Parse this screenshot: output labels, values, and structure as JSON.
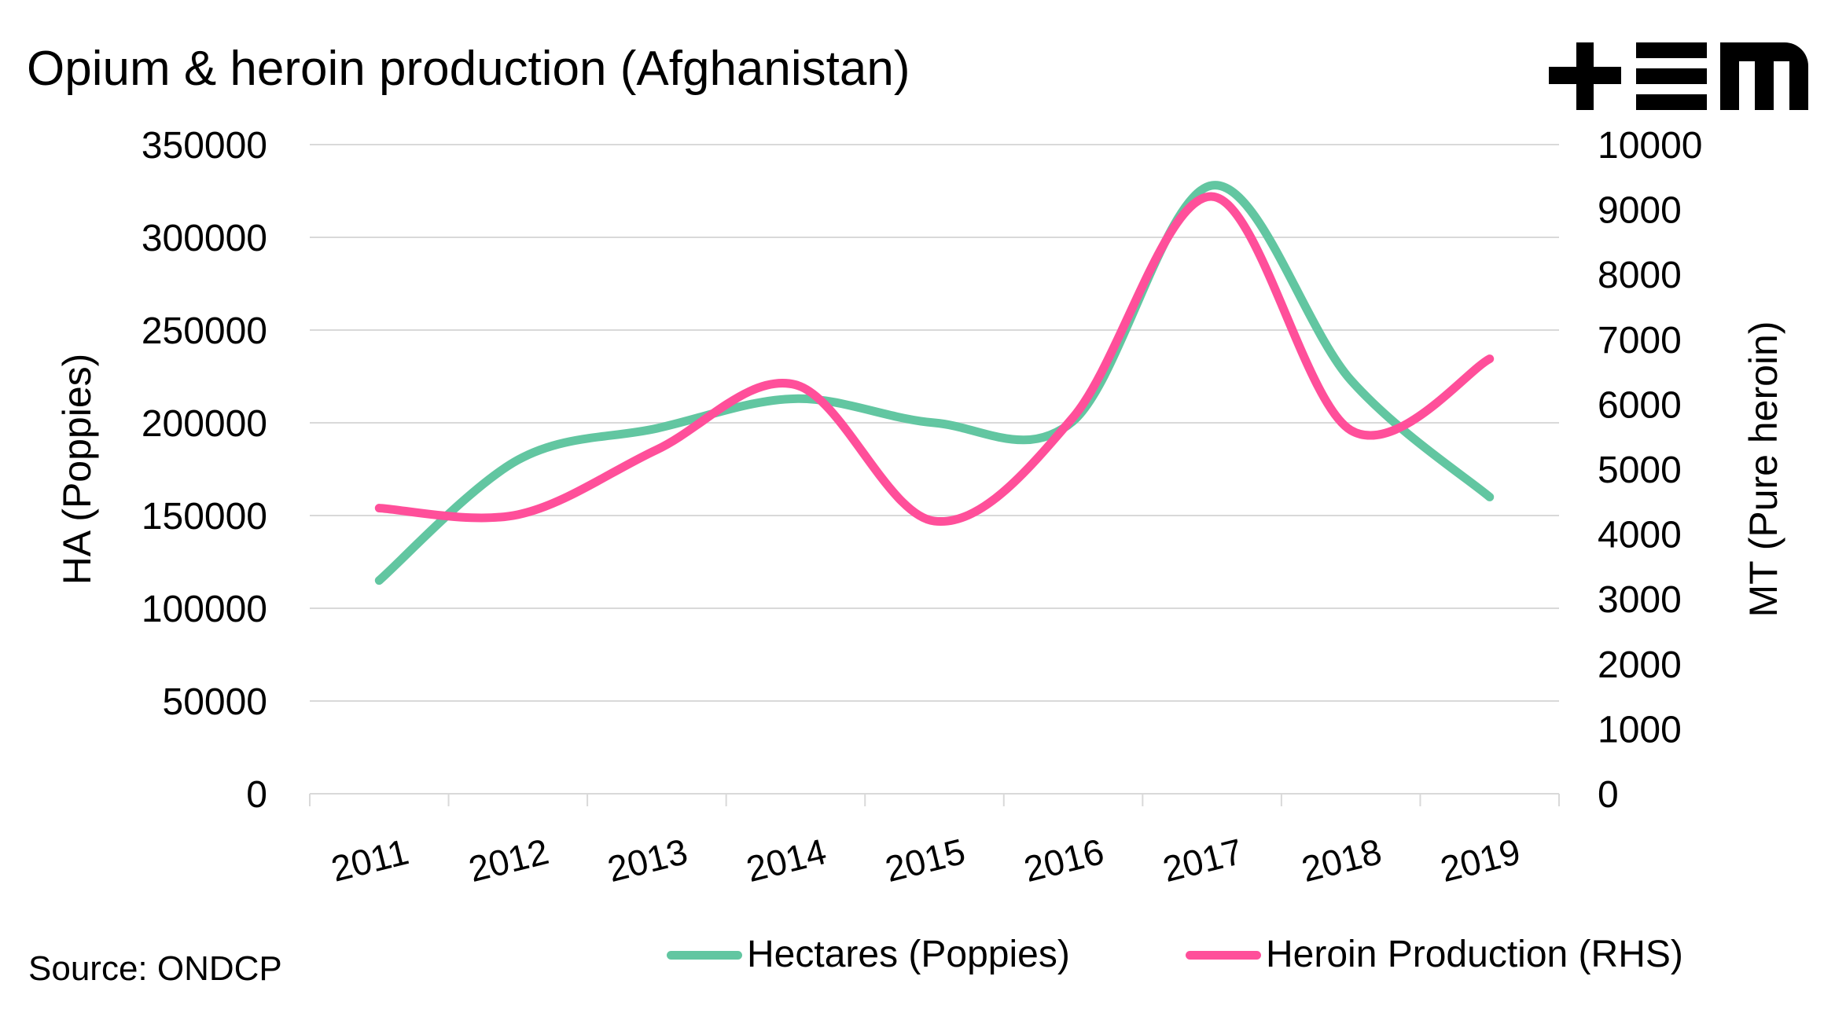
{
  "header": {
    "title": "Opium & heroin production (Afghanistan)"
  },
  "footer": {
    "source": "Source: ONDCP"
  },
  "logo": {
    "name": "+EM",
    "icon": "tem-logo-icon"
  },
  "chart_data": {
    "type": "line",
    "title": "Opium & heroin production (Afghanistan)",
    "categories": [
      "2011",
      "2012",
      "2013",
      "2014",
      "2015",
      "2016",
      "2017",
      "2018",
      "2019"
    ],
    "series": [
      {
        "name": "Hectares (Poppies)",
        "axis": "left",
        "color": "#62C6A1",
        "values": [
          115000,
          180000,
          197000,
          213000,
          200000,
          201000,
          328000,
          223000,
          160000
        ]
      },
      {
        "name": "Heroin Production (RHS)",
        "axis": "right",
        "color": "#FF4F9A",
        "values": [
          4400,
          4300,
          5300,
          6300,
          4200,
          5800,
          9200,
          5600,
          6700
        ]
      }
    ],
    "ylabel": "HA (Poppies)",
    "y2label": "MT (Pure heroin)",
    "ylim": [
      0,
      350000
    ],
    "y2lim": [
      0,
      10000
    ],
    "yticks": [
      "0",
      "50000",
      "100000",
      "150000",
      "200000",
      "250000",
      "300000",
      "350000"
    ],
    "y2ticks": [
      "0",
      "1000",
      "2000",
      "3000",
      "4000",
      "5000",
      "6000",
      "7000",
      "8000",
      "9000",
      "10000"
    ],
    "grid": true,
    "legend": "bottom",
    "smooth": true
  }
}
